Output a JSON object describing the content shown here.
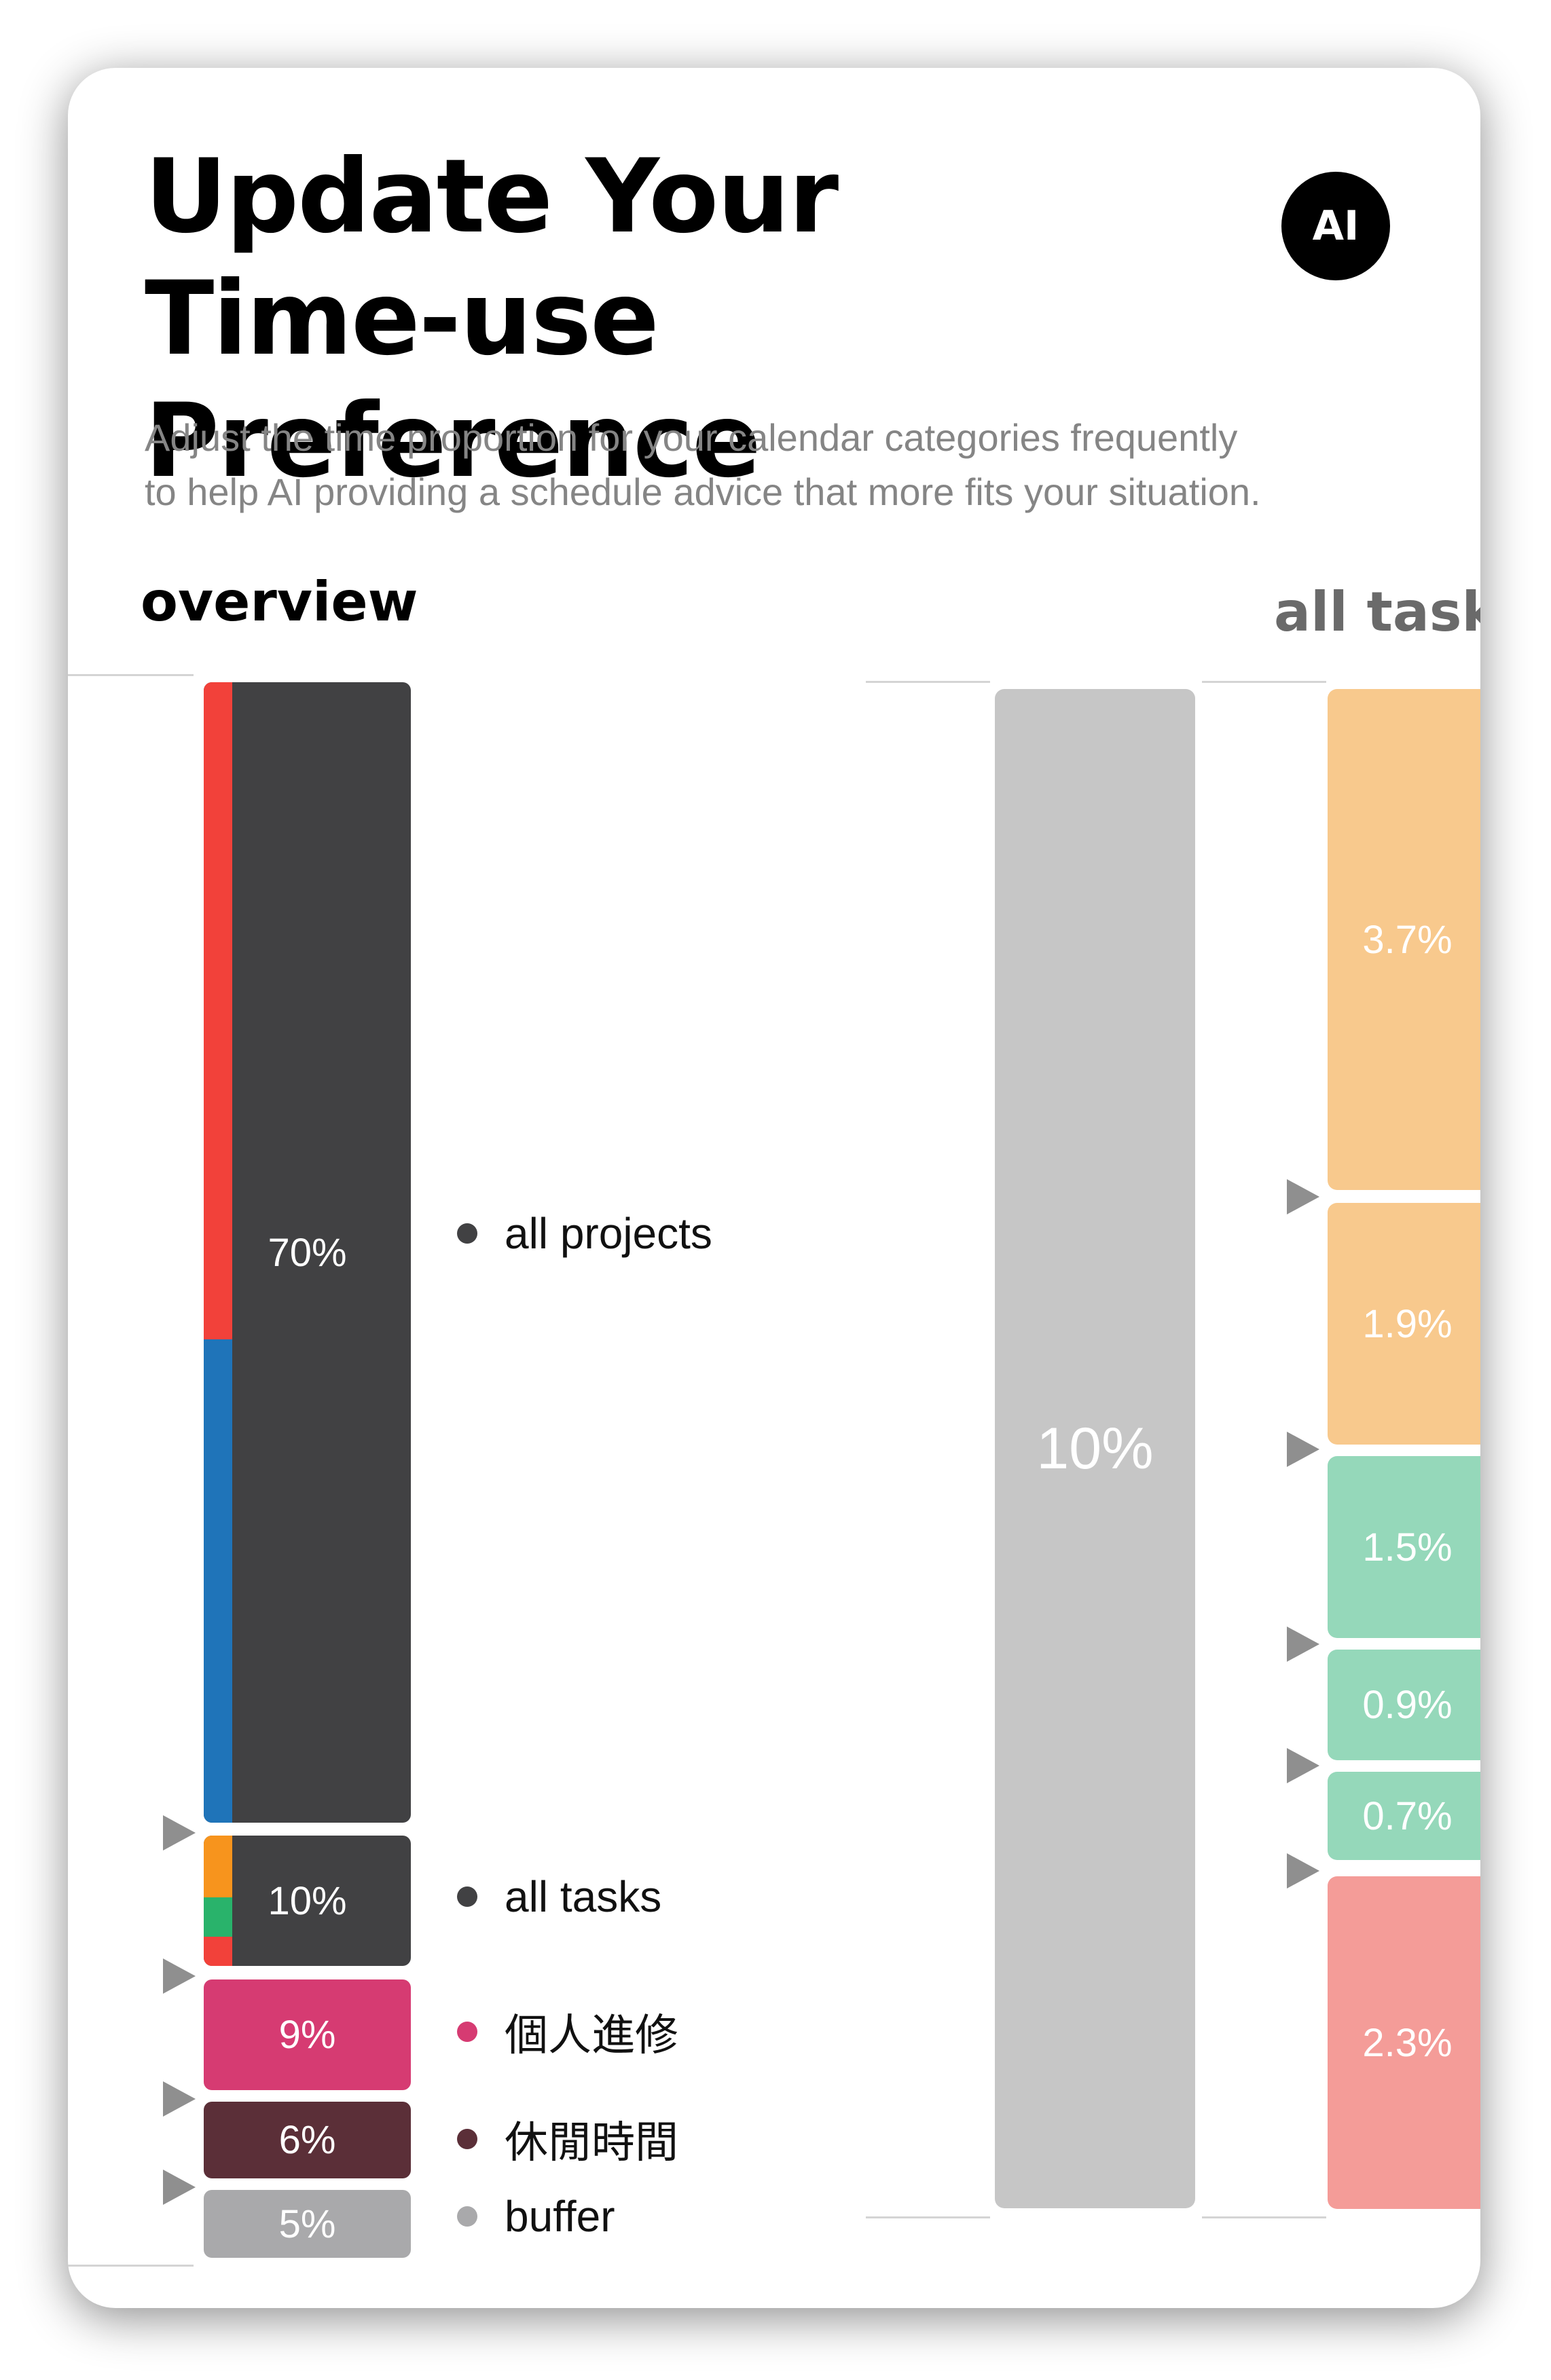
{
  "header": {
    "title_line1": "Update Your",
    "title_line2": "Time-use Preference",
    "ai_badge": "AI",
    "subtitle_line1": "Adjust the time proportion for your calendar categories frequently",
    "subtitle_line2": "to help AI providing a schedule advice that more fits your situation."
  },
  "overview": {
    "label": "overview",
    "segments": [
      {
        "name": "all projects",
        "value": "70%",
        "color": "#414143",
        "dot_color": "#414143"
      },
      {
        "name": "all tasks",
        "value": "10%",
        "color": "#414143",
        "dot_color": "#414143"
      },
      {
        "name": "個人進修",
        "value": "9%",
        "color": "#d63b72",
        "dot_color": "#d63b72"
      },
      {
        "name": "休閒時間",
        "value": "6%",
        "color": "#5b2f38",
        "dot_color": "#5b2f38"
      },
      {
        "name": "buffer",
        "value": "5%",
        "color": "#a9a9ab",
        "dot_color": "#a9a9ab"
      }
    ],
    "project_stripe_colors": [
      "#f2413a",
      "#1f74b9"
    ],
    "task_stripe_colors": [
      "#f7941d",
      "#29b36b",
      "#f2413a"
    ]
  },
  "all_tasks": {
    "label": "all task",
    "total": "10%",
    "items": [
      {
        "value": "3.7%",
        "color": "#f8c98d"
      },
      {
        "value": "1.9%",
        "color": "#f8c98d"
      },
      {
        "value": "1.5%",
        "color": "#95d8ba"
      },
      {
        "value": "0.9%",
        "color": "#95d8ba"
      },
      {
        "value": "0.7%",
        "color": "#95d8ba"
      },
      {
        "value": "2.3%",
        "color": "#f49c98"
      }
    ]
  }
}
